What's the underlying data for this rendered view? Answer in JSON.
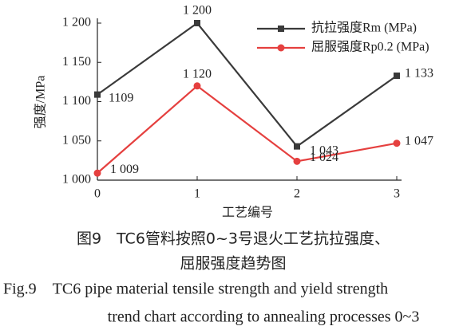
{
  "chart_data": {
    "type": "line",
    "x_label": "工艺编号",
    "y_label": "强度/MPa",
    "x": [
      0,
      1,
      2,
      3
    ],
    "xlim": [
      0,
      3
    ],
    "xticks": [
      0,
      1,
      2,
      3
    ],
    "ylim": [
      1000,
      1200
    ],
    "yticks": [
      {
        "value": 1000,
        "label": "1 000"
      },
      {
        "value": 1050,
        "label": "1 050"
      },
      {
        "value": 1100,
        "label": "1 100"
      },
      {
        "value": 1150,
        "label": "1 150"
      },
      {
        "value": 1200,
        "label": "1 200"
      }
    ],
    "series": [
      {
        "name": "抗拉强度Rm (MPa)",
        "color": "#3a3a3a",
        "marker": "square",
        "values": [
          1109,
          1200,
          1043,
          1133
        ],
        "value_labels": [
          "1109",
          "1 200",
          "1 043",
          "1 133"
        ]
      },
      {
        "name": "屈服强度Rp0.2 (MPa)",
        "color": "#e5403f",
        "marker": "circle",
        "values": [
          1009,
          1120,
          1024,
          1047
        ],
        "value_labels": [
          "1 009",
          "1 120",
          "1 024",
          "1 047"
        ]
      }
    ],
    "caption_cn": [
      "图9　TC6管料按照0~3号退火工艺抗拉强度、",
      "屈服强度趋势图"
    ],
    "caption_en": [
      "Fig.9　TC6 pipe material tensile strength and yield strength",
      "trend chart according to annealing processes 0~3"
    ]
  }
}
